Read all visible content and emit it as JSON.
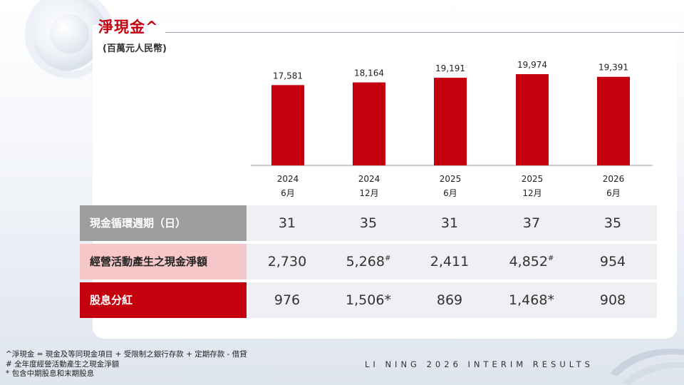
{
  "header": {
    "title": "淨現金^",
    "subtitle": "(百萬元人民幣)"
  },
  "chart_data": {
    "type": "bar",
    "title": "淨現金^",
    "subtitle": "(百萬元人民幣)",
    "categories": [
      [
        "2024",
        "6月"
      ],
      [
        "2024",
        "12月"
      ],
      [
        "2025",
        "6月"
      ],
      [
        "2025",
        "12月"
      ],
      [
        "2026",
        "6月"
      ]
    ],
    "values": [
      17581,
      18164,
      19191,
      19974,
      19391
    ],
    "value_labels": [
      "17,581",
      "18,164",
      "19,191",
      "19,974",
      "19,391"
    ],
    "bar_color": "#c4000f",
    "grid": false
  },
  "table": {
    "rows": [
      {
        "label": "現金循環週期（日）",
        "cells": [
          {
            "v": "31"
          },
          {
            "v": "35"
          },
          {
            "v": "31"
          },
          {
            "v": "37"
          },
          {
            "v": "35"
          }
        ]
      },
      {
        "label": "經營活動產生之現金淨額",
        "cells": [
          {
            "v": "2,730"
          },
          {
            "v": "5,268",
            "mark": "#"
          },
          {
            "v": "2,411"
          },
          {
            "v": "4,852",
            "mark": "#"
          },
          {
            "v": "954"
          }
        ]
      },
      {
        "label": "股息分紅",
        "cells": [
          {
            "v": "976"
          },
          {
            "v": "1,506*"
          },
          {
            "v": "869"
          },
          {
            "v": "1,468*"
          },
          {
            "v": "908"
          }
        ]
      }
    ]
  },
  "footnotes": [
    "^淨現金 = 現金及等同現金項目 + 受限制之銀行存款 + 定期存款 - 借貸",
    "# 全年度經營活動產生之現金淨額",
    "* 包含中期股息和末期股息"
  ],
  "footer": {
    "brand": "LI NING 2026 INTERIM RESULTS",
    "logo_icon": "li-ning-swoosh-logo"
  }
}
